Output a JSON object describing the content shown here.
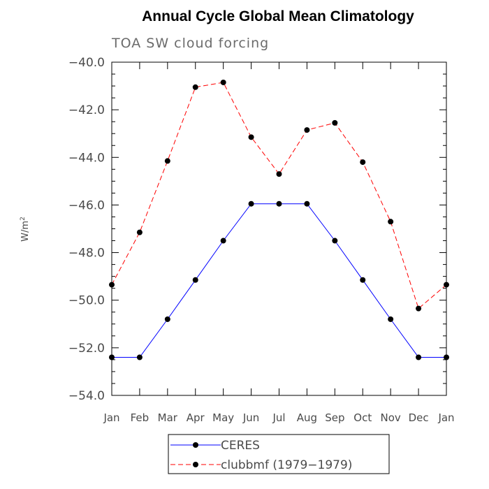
{
  "chart_data": {
    "type": "line",
    "title": "Annual Cycle Global Mean Climatology",
    "subtitle": "TOA SW cloud forcing",
    "xlabel": "",
    "ylabel": "W/m",
    "ylabel_superscript": "2",
    "categories": [
      "Jan",
      "Feb",
      "Mar",
      "Apr",
      "May",
      "Jun",
      "Jul",
      "Aug",
      "Sep",
      "Oct",
      "Nov",
      "Dec",
      "Jan"
    ],
    "ylim": [
      -54.0,
      -40.0
    ],
    "yticks": [
      "-54.0",
      "-52.0",
      "-50.0",
      "-48.0",
      "-46.0",
      "-44.0",
      "-42.0",
      "-40.0"
    ],
    "grid": false,
    "legend_position": "bottom-center",
    "series": [
      {
        "name": "CERES",
        "color": "#0000ff",
        "dashed": false,
        "values": [
          -52.4,
          -52.4,
          -50.8,
          -49.15,
          -47.5,
          -45.95,
          -45.95,
          -45.95,
          -47.5,
          -49.15,
          -50.8,
          -52.4,
          -52.4
        ]
      },
      {
        "name": "clubbmf (1979−1979)",
        "color": "#ff0000",
        "dashed": true,
        "values": [
          -49.35,
          -47.15,
          -44.15,
          -41.05,
          -40.85,
          -43.15,
          -44.7,
          -42.85,
          -42.55,
          -44.2,
          -46.7,
          -50.35,
          -49.35
        ]
      }
    ]
  }
}
